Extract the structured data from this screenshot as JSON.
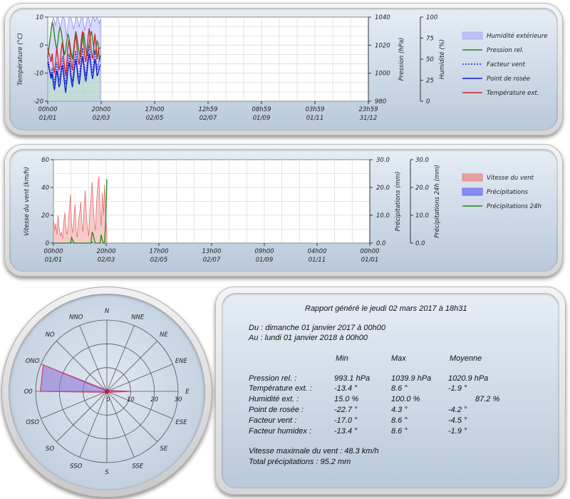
{
  "chart_data": [
    {
      "type": "line",
      "x_ticks": [
        {
          "time": "00h00",
          "date": "01/01"
        },
        {
          "time": "20h00",
          "date": "02/03"
        },
        {
          "time": "17h00",
          "date": "02/05"
        },
        {
          "time": "12h59",
          "date": "02/07"
        },
        {
          "time": "08h59",
          "date": "01/09"
        },
        {
          "time": "03h59",
          "date": "01/11"
        },
        {
          "time": "23h59",
          "date": "31/12"
        }
      ],
      "xlim": [
        "01/01 00h00",
        "31/12 23h59"
      ],
      "axes": {
        "temperature": {
          "label": "Température (°C)",
          "range": [
            -20,
            10
          ],
          "ticks": [
            "10",
            "0",
            "-10",
            "-20"
          ]
        },
        "pressure": {
          "label": "Pression (hPa)",
          "range": [
            980,
            1040
          ],
          "ticks": [
            "1040",
            "1020",
            "1000",
            "980"
          ]
        },
        "humidity": {
          "label": "Humidité (%)",
          "range": [
            0,
            100
          ],
          "ticks": [
            "100",
            "75",
            "50",
            "25",
            "0"
          ]
        }
      },
      "legend": [
        "Humidité extérieure",
        "Pression rel.",
        "Facteur vent",
        "Point de rosée",
        "Température ext."
      ],
      "legend_placement": "right",
      "grid": true,
      "series": [
        {
          "name": "Humidité extérieure",
          "axis": "humidity",
          "color": "#b3b3f5",
          "values": [
            58,
            62,
            70,
            86,
            95,
            99,
            96,
            90,
            98,
            100,
            95,
            88,
            92,
            99,
            100,
            97,
            86,
            78,
            90,
            99,
            100,
            98,
            93,
            85,
            91,
            99,
            100,
            96,
            88,
            95,
            100,
            99,
            92,
            84,
            90,
            98,
            100,
            97,
            88,
            94,
            100,
            99,
            95,
            98,
            100,
            96,
            92,
            98
          ]
        },
        {
          "name": "Pression rel.",
          "axis": "pressure",
          "color": "#1d8a1d",
          "values": [
            1012,
            1018,
            1024,
            1031,
            1036,
            1034,
            1027,
            1021,
            1017,
            1022,
            1029,
            1033,
            1030,
            1024,
            1018,
            1013,
            1016,
            1023,
            1028,
            1025,
            1019,
            1014,
            1010,
            1016,
            1024,
            1030,
            1026,
            1020,
            1015,
            1011,
            1018,
            1025,
            1029,
            1023,
            1017,
            1012,
            1016,
            1022,
            1027,
            1030,
            1024,
            1018,
            1013,
            1017,
            1023,
            1021,
            1009,
            1013
          ]
        },
        {
          "name": "Facteur vent",
          "axis": "temperature",
          "color": "#2323d6",
          "values": [
            -4,
            -7,
            -9,
            -11,
            -8,
            -12,
            -14,
            -10,
            -6,
            -9,
            -13,
            -11,
            -7,
            -4,
            -8,
            -12,
            -14,
            -10,
            -6,
            -3,
            -7,
            -11,
            -13,
            -9,
            -5,
            -2,
            -6,
            -10,
            -12,
            -8,
            -4,
            -1,
            -5,
            -9,
            -11,
            -7,
            -3,
            0,
            -4,
            -8,
            -10,
            -6,
            -2,
            -5,
            -9,
            -7,
            -5,
            -4
          ]
        },
        {
          "name": "Point de rosée",
          "axis": "temperature",
          "color": "#0a1ecc",
          "values": [
            -6,
            -8,
            -10,
            -12,
            -10,
            -14,
            -16,
            -13,
            -9,
            -11,
            -15,
            -14,
            -10,
            -7,
            -10,
            -14,
            -17,
            -13,
            -9,
            -6,
            -9,
            -13,
            -15,
            -12,
            -8,
            -5,
            -8,
            -12,
            -14,
            -11,
            -7,
            -4,
            -7,
            -11,
            -13,
            -10,
            -6,
            -3,
            -6,
            -10,
            -12,
            -9,
            -5,
            -7,
            -11,
            -10,
            -8,
            -7
          ]
        },
        {
          "name": "Température ext.",
          "axis": "temperature",
          "color": "#d11f1f",
          "values": [
            -1,
            -3,
            -4,
            -6,
            -3,
            -8,
            -10,
            -6,
            -1,
            -4,
            -9,
            -7,
            -2,
            1,
            -3,
            -8,
            -11,
            -6,
            -1,
            2,
            -2,
            -7,
            -9,
            -4,
            1,
            4,
            0,
            -5,
            -7,
            -3,
            2,
            5,
            1,
            -4,
            -6,
            -2,
            3,
            6,
            2,
            -3,
            -5,
            -1,
            4,
            0,
            -5,
            -2,
            -1,
            -1
          ]
        }
      ]
    },
    {
      "type": "bar",
      "x_ticks": [
        {
          "time": "00h00",
          "date": "01/01"
        },
        {
          "time": "20h00",
          "date": "02/03"
        },
        {
          "time": "17h00",
          "date": "02/05"
        },
        {
          "time": "13h00",
          "date": "02/07"
        },
        {
          "time": "09h00",
          "date": "01/09"
        },
        {
          "time": "04h00",
          "date": "01/11"
        },
        {
          "time": "00h00",
          "date": "01/01"
        }
      ],
      "xlim": [
        "01/01 00h00",
        "01/01 00h00"
      ],
      "axes": {
        "wind": {
          "label": "Vitesse du vent (km/h)",
          "range": [
            0,
            60
          ],
          "ticks": [
            "60",
            "40",
            "20",
            "0"
          ]
        },
        "rain": {
          "label": "Précipitations (mm)",
          "range": [
            0,
            30
          ],
          "ticks": [
            "30.0",
            "20.0",
            "10.0",
            "0.0"
          ]
        },
        "rain24": {
          "label": "Précipitations 24h (mm)",
          "range": [
            0,
            30
          ],
          "ticks": [
            "30.0",
            "20.0",
            "10.0",
            "0.0"
          ]
        }
      },
      "legend": [
        "Vitesse du vent",
        "Précipitations",
        "Précipitations 24h"
      ],
      "legend_placement": "right",
      "grid": true,
      "series": [
        {
          "name": "Vitesse du vent",
          "axis": "wind",
          "color": "#e88a8a",
          "values": [
            18,
            9,
            14,
            6,
            20,
            11,
            5,
            8,
            3,
            15,
            22,
            10,
            6,
            13,
            24,
            35,
            12,
            7,
            18,
            28,
            9,
            4,
            16,
            21,
            30,
            14,
            8,
            26,
            38,
            19,
            10,
            5,
            22,
            33,
            44,
            27,
            15,
            9,
            30,
            41,
            48,
            25,
            12,
            36,
            20,
            42,
            18,
            10
          ]
        },
        {
          "name": "Précipitations",
          "axis": "rain",
          "color": "#6f6ff2",
          "values": [
            0,
            0,
            0,
            0,
            0,
            0,
            0,
            0,
            0,
            0,
            0,
            0,
            0,
            0,
            0,
            0,
            0.4,
            0,
            0,
            0,
            0,
            0,
            0,
            0,
            0,
            0,
            0,
            0,
            0,
            0,
            0,
            0,
            0,
            0,
            0.6,
            0,
            0,
            0,
            0,
            0,
            0,
            0,
            0,
            0,
            0,
            0,
            0,
            0
          ]
        },
        {
          "name": "Précipitations 24h",
          "axis": "rain24",
          "color": "#1d8a1d",
          "values": [
            0,
            0,
            0,
            0,
            0,
            0,
            0,
            0,
            0,
            0,
            0,
            0,
            0,
            0,
            0,
            0,
            2,
            1,
            0,
            0,
            0,
            0,
            0,
            0,
            0,
            0,
            0,
            0,
            0,
            0,
            0,
            0,
            0,
            0,
            4,
            3,
            1,
            0,
            0,
            0,
            0,
            0,
            3,
            1,
            0,
            0,
            8,
            23
          ]
        }
      ]
    },
    {
      "type": "radar",
      "directions": [
        "N",
        "NNE",
        "NE",
        "ENE",
        "E",
        "ESE",
        "SE",
        "SSE",
        "S",
        "SSO",
        "SO",
        "OSO",
        "O",
        "ONO",
        "NO",
        "NNO"
      ],
      "rings": [
        "0",
        "10",
        "20",
        "30"
      ],
      "range": [
        0,
        30
      ],
      "grid": true,
      "series": [
        {
          "name": "",
          "color": "#7d6fd1",
          "values": [
            0.5,
            0.5,
            0.5,
            1,
            10,
            1,
            0.5,
            0.5,
            0.5,
            0.5,
            0.5,
            1,
            28,
            29,
            1,
            0.5
          ]
        }
      ]
    }
  ],
  "report": {
    "title": "Rapport généré le jeudi 02 mars 2017 à 18h31",
    "from": "Du : dimanche 01 janvier 2017 à 00h00",
    "to": "Au : lundi 01 janvier 2018 à 00h00",
    "headers": [
      "Min",
      "Max",
      "Moyenne"
    ],
    "rows": [
      {
        "label": "Pression rel. :",
        "min": "993.1 hPa",
        "max": "1039.9 hPa",
        "avg": "1020.9 hPa"
      },
      {
        "label": "Température ext. :",
        "min": "-13.4 °",
        "max": "8.6 °",
        "avg": "-1.9 °"
      },
      {
        "label": "Humidité ext. :",
        "min": "15.0 %",
        "max": "100.0 %",
        "avg": "87.2 %"
      },
      {
        "label": "Point de rosée :",
        "min": "-22.7 °",
        "max": "4.3 °",
        "avg": "-4.2 °"
      },
      {
        "label": "Facteur vent :",
        "min": "-17.0 °",
        "max": "8.6 °",
        "avg": "-4.5 °"
      },
      {
        "label": "Facteur humidex :",
        "min": "-13.4 °",
        "max": "8.6 °",
        "avg": "-1.9 °"
      }
    ],
    "max_wind": "Vitesse maximale du vent : 48.3 km/h",
    "total_rain": "Total précipitations : 95.2 mm"
  }
}
